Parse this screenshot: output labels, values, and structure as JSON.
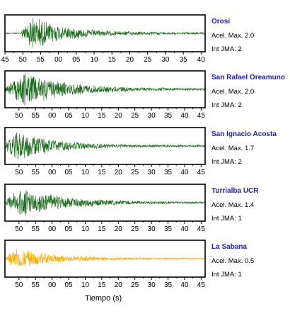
{
  "chart_data": {
    "type": "line",
    "xlabel": "Tiempo (s)",
    "units_note": "",
    "colors": {
      "normal": "#1a6b1a",
      "highlight": "#ffaa00",
      "name": "#1a1ae6"
    },
    "panels": [
      {
        "name": "Orosi",
        "acel_label": "Acel. Max. 2.0",
        "int_label": "Int JMA: 2",
        "acel_max": 2.0,
        "color": "#1a6b1a",
        "ticks": [
          "45",
          "50",
          "55",
          "00",
          "05",
          "10",
          "15",
          "20",
          "25",
          "30",
          "35",
          "40"
        ],
        "first_tick_offset": 0.0,
        "onset_fraction": 0.08,
        "peak_fraction": 0.14,
        "decay": 0.16
      },
      {
        "name": "San Rafael Oreamuno",
        "acel_label": "Acel. Max. 2.0",
        "int_label": "Int JMA: 2",
        "acel_max": 2.0,
        "color": "#1a6b1a",
        "ticks": [
          "50",
          "55",
          "00",
          "05",
          "10",
          "15",
          "20",
          "25",
          "30",
          "35",
          "40",
          "45"
        ],
        "first_tick_offset": 0.07,
        "onset_fraction": 0.0,
        "peak_fraction": 0.1,
        "decay": 0.2
      },
      {
        "name": "San Ignacio Acosta",
        "acel_label": "Acel. Max. 1.7",
        "int_label": "Int JMA: 2",
        "acel_max": 1.7,
        "color": "#1a6b1a",
        "ticks": [
          "50",
          "55",
          "00",
          "05",
          "10",
          "15",
          "20",
          "25",
          "30",
          "35",
          "40",
          "45"
        ],
        "first_tick_offset": 0.07,
        "onset_fraction": 0.0,
        "peak_fraction": 0.06,
        "decay": 0.18
      },
      {
        "name": "Turrialba UCR",
        "acel_label": "Acel. Max. 1.4",
        "int_label": "Int JMA: 1",
        "acel_max": 1.4,
        "color": "#1a6b1a",
        "ticks": [
          "50",
          "55",
          "00",
          "05",
          "10",
          "15",
          "20",
          "25",
          "30",
          "35",
          "40",
          "45"
        ],
        "first_tick_offset": 0.07,
        "onset_fraction": 0.0,
        "peak_fraction": 0.08,
        "decay": 0.22
      },
      {
        "name": "La Sabana",
        "acel_label": "Acel. Max. 0.5",
        "int_label": "Int JMA: 1",
        "acel_max": 0.5,
        "color": "#ffaa00",
        "ticks": [
          "50",
          "55",
          "00",
          "05",
          "10",
          "15",
          "20",
          "25",
          "30",
          "35",
          "40",
          "45"
        ],
        "first_tick_offset": 0.07,
        "onset_fraction": 0.0,
        "peak_fraction": 0.05,
        "decay": 0.2
      }
    ]
  }
}
